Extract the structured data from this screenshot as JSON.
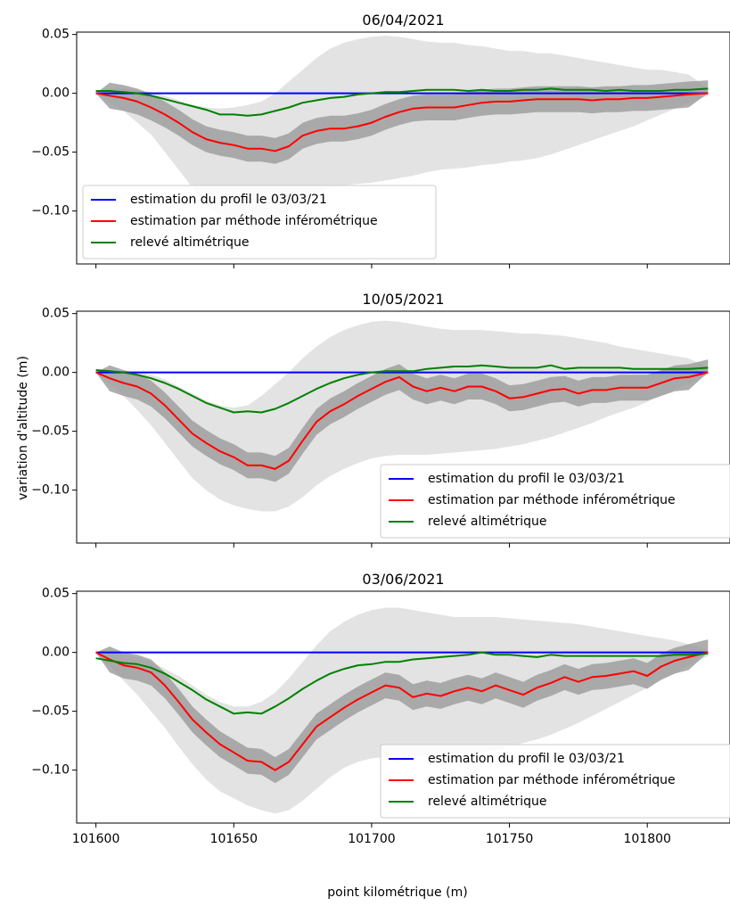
{
  "figure": {
    "xlabel": "point kilométrique (m)",
    "ylabel": "variation d'altitude (m)"
  },
  "chart_data": [
    {
      "type": "line",
      "title": "06/04/2021",
      "xlim": [
        101593,
        101830
      ],
      "ylim": [
        -0.145,
        0.052
      ],
      "xticks": [
        101600,
        101650,
        101700,
        101750,
        101800
      ],
      "yticks": [
        0.05,
        0.0,
        -0.05,
        -0.1
      ],
      "ytick_labels": [
        "0.05",
        "0.00",
        "−0.05",
        "−0.10"
      ],
      "show_xtick_labels": false,
      "legend_position": "lower-left",
      "x": [
        101600,
        101605,
        101610,
        101615,
        101620,
        101625,
        101630,
        101635,
        101640,
        101645,
        101650,
        101655,
        101660,
        101665,
        101670,
        101675,
        101680,
        101685,
        101690,
        101695,
        101700,
        101705,
        101710,
        101715,
        101720,
        101725,
        101730,
        101735,
        101740,
        101745,
        101750,
        101755,
        101760,
        101765,
        101770,
        101775,
        101780,
        101785,
        101790,
        101795,
        101800,
        101805,
        101810,
        101815,
        101822
      ],
      "light_band": {
        "upper": [
          0.002,
          0.004,
          0.004,
          0.003,
          0.001,
          -0.002,
          -0.006,
          -0.01,
          -0.012,
          -0.013,
          -0.012,
          -0.01,
          -0.007,
          0.0,
          0.01,
          0.02,
          0.03,
          0.038,
          0.043,
          0.046,
          0.048,
          0.049,
          0.048,
          0.046,
          0.044,
          0.043,
          0.043,
          0.041,
          0.04,
          0.038,
          0.036,
          0.036,
          0.034,
          0.034,
          0.032,
          0.03,
          0.028,
          0.026,
          0.024,
          0.022,
          0.02,
          0.02,
          0.018,
          0.016,
          0.004
        ],
        "lower": [
          0.0,
          -0.008,
          -0.015,
          -0.025,
          -0.035,
          -0.05,
          -0.065,
          -0.08,
          -0.095,
          -0.103,
          -0.108,
          -0.11,
          -0.11,
          -0.108,
          -0.1,
          -0.092,
          -0.085,
          -0.08,
          -0.078,
          -0.077,
          -0.076,
          -0.074,
          -0.072,
          -0.07,
          -0.067,
          -0.065,
          -0.064,
          -0.063,
          -0.061,
          -0.06,
          -0.058,
          -0.057,
          -0.055,
          -0.052,
          -0.048,
          -0.044,
          -0.04,
          -0.036,
          -0.032,
          -0.028,
          -0.023,
          -0.018,
          -0.013,
          -0.008,
          -0.002
        ]
      },
      "dark_band_halfwidth": 0.011,
      "series": [
        {
          "name": "estimation du profil le 03/03/21",
          "color": "#0000ff",
          "values": [
            0.0,
            0.0,
            0.0,
            0.0,
            0.0,
            0.0,
            0.0,
            0.0,
            0.0,
            0.0,
            0.0,
            0.0,
            0.0,
            0.0,
            0.0,
            0.0,
            0.0,
            0.0,
            0.0,
            0.0,
            0.0,
            0.0,
            0.0,
            0.0,
            0.0,
            0.0,
            0.0,
            0.0,
            0.0,
            0.0,
            0.0,
            0.0,
            0.0,
            0.0,
            0.0,
            0.0,
            0.0,
            0.0,
            0.0,
            0.0,
            0.0,
            0.0,
            0.0,
            0.0,
            0.0
          ]
        },
        {
          "name": "estimation par méthode inférométrique",
          "color": "#ff0000",
          "values": [
            0.0,
            -0.002,
            -0.004,
            -0.007,
            -0.012,
            -0.018,
            -0.025,
            -0.033,
            -0.039,
            -0.042,
            -0.044,
            -0.047,
            -0.047,
            -0.049,
            -0.045,
            -0.036,
            -0.032,
            -0.03,
            -0.03,
            -0.028,
            -0.025,
            -0.02,
            -0.016,
            -0.013,
            -0.012,
            -0.012,
            -0.012,
            -0.01,
            -0.008,
            -0.007,
            -0.007,
            -0.006,
            -0.005,
            -0.005,
            -0.005,
            -0.005,
            -0.006,
            -0.005,
            -0.005,
            -0.004,
            -0.004,
            -0.003,
            -0.002,
            -0.001,
            0.0
          ]
        },
        {
          "name": "relevé altimétrique",
          "color": "#008000",
          "values": [
            0.002,
            0.002,
            0.001,
            0.0,
            -0.002,
            -0.005,
            -0.008,
            -0.011,
            -0.014,
            -0.018,
            -0.018,
            -0.019,
            -0.018,
            -0.015,
            -0.012,
            -0.008,
            -0.006,
            -0.004,
            -0.003,
            -0.001,
            0.0,
            0.001,
            0.001,
            0.002,
            0.003,
            0.003,
            0.003,
            0.002,
            0.003,
            0.002,
            0.002,
            0.003,
            0.003,
            0.004,
            0.003,
            0.003,
            0.003,
            0.002,
            0.003,
            0.002,
            0.002,
            0.002,
            0.003,
            0.003,
            0.004
          ]
        }
      ]
    },
    {
      "type": "line",
      "title": "10/05/2021",
      "xlim": [
        101593,
        101830
      ],
      "ylim": [
        -0.145,
        0.052
      ],
      "xticks": [
        101600,
        101650,
        101700,
        101750,
        101800
      ],
      "yticks": [
        0.05,
        0.0,
        -0.05,
        -0.1
      ],
      "ytick_labels": [
        "0.05",
        "0.00",
        "−0.05",
        "−0.10"
      ],
      "show_xtick_labels": false,
      "legend_position": "lower-right",
      "x": [
        101600,
        101605,
        101610,
        101615,
        101620,
        101625,
        101630,
        101635,
        101640,
        101645,
        101650,
        101655,
        101660,
        101665,
        101670,
        101675,
        101680,
        101685,
        101690,
        101695,
        101700,
        101705,
        101710,
        101715,
        101720,
        101725,
        101730,
        101735,
        101740,
        101745,
        101750,
        101755,
        101760,
        101765,
        101770,
        101775,
        101780,
        101785,
        101790,
        101795,
        101800,
        101805,
        101810,
        101815,
        101822
      ],
      "light_band": {
        "upper": [
          0.002,
          0.002,
          0.001,
          0.0,
          -0.002,
          -0.006,
          -0.012,
          -0.018,
          -0.024,
          -0.028,
          -0.03,
          -0.028,
          -0.02,
          -0.01,
          0.0,
          0.012,
          0.022,
          0.03,
          0.036,
          0.04,
          0.043,
          0.044,
          0.043,
          0.041,
          0.039,
          0.037,
          0.036,
          0.036,
          0.036,
          0.035,
          0.034,
          0.033,
          0.033,
          0.032,
          0.031,
          0.029,
          0.027,
          0.025,
          0.022,
          0.02,
          0.018,
          0.016,
          0.014,
          0.012,
          0.004
        ],
        "lower": [
          0.0,
          -0.01,
          -0.02,
          -0.032,
          -0.045,
          -0.06,
          -0.075,
          -0.09,
          -0.1,
          -0.108,
          -0.113,
          -0.116,
          -0.118,
          -0.118,
          -0.114,
          -0.106,
          -0.096,
          -0.088,
          -0.082,
          -0.077,
          -0.073,
          -0.071,
          -0.07,
          -0.07,
          -0.07,
          -0.069,
          -0.068,
          -0.067,
          -0.066,
          -0.065,
          -0.063,
          -0.061,
          -0.058,
          -0.055,
          -0.051,
          -0.047,
          -0.043,
          -0.038,
          -0.034,
          -0.03,
          -0.025,
          -0.02,
          -0.015,
          -0.01,
          -0.002
        ]
      },
      "dark_band_halfwidth": 0.011,
      "series": [
        {
          "name": "estimation du profil le 03/03/21",
          "color": "#0000ff",
          "values": [
            0.0,
            0.0,
            0.0,
            0.0,
            0.0,
            0.0,
            0.0,
            0.0,
            0.0,
            0.0,
            0.0,
            0.0,
            0.0,
            0.0,
            0.0,
            0.0,
            0.0,
            0.0,
            0.0,
            0.0,
            0.0,
            0.0,
            0.0,
            0.0,
            0.0,
            0.0,
            0.0,
            0.0,
            0.0,
            0.0,
            0.0,
            0.0,
            0.0,
            0.0,
            0.0,
            0.0,
            0.0,
            0.0,
            0.0,
            0.0,
            0.0,
            0.0,
            0.0,
            0.0,
            0.0
          ]
        },
        {
          "name": "estimation par méthode inférométrique",
          "color": "#ff0000",
          "values": [
            0.0,
            -0.005,
            -0.009,
            -0.012,
            -0.018,
            -0.028,
            -0.04,
            -0.052,
            -0.06,
            -0.067,
            -0.072,
            -0.079,
            -0.079,
            -0.082,
            -0.075,
            -0.058,
            -0.042,
            -0.033,
            -0.027,
            -0.02,
            -0.014,
            -0.008,
            -0.004,
            -0.012,
            -0.016,
            -0.013,
            -0.016,
            -0.012,
            -0.012,
            -0.016,
            -0.022,
            -0.021,
            -0.018,
            -0.015,
            -0.014,
            -0.018,
            -0.015,
            -0.015,
            -0.013,
            -0.013,
            -0.013,
            -0.009,
            -0.005,
            -0.004,
            0.0
          ]
        },
        {
          "name": "relevé altimétrique",
          "color": "#008000",
          "values": [
            0.002,
            0.001,
            0.0,
            -0.002,
            -0.005,
            -0.009,
            -0.014,
            -0.02,
            -0.026,
            -0.03,
            -0.034,
            -0.033,
            -0.034,
            -0.031,
            -0.026,
            -0.02,
            -0.014,
            -0.009,
            -0.005,
            -0.002,
            0.0,
            0.001,
            0.001,
            0.001,
            0.003,
            0.004,
            0.005,
            0.005,
            0.006,
            0.005,
            0.004,
            0.004,
            0.004,
            0.006,
            0.003,
            0.004,
            0.004,
            0.004,
            0.004,
            0.003,
            0.003,
            0.003,
            0.003,
            0.003,
            0.004
          ]
        }
      ]
    },
    {
      "type": "line",
      "title": "03/06/2021",
      "xlim": [
        101593,
        101830
      ],
      "ylim": [
        -0.145,
        0.052
      ],
      "xticks": [
        101600,
        101650,
        101700,
        101750,
        101800
      ],
      "xtick_labels": [
        "101600",
        "101650",
        "101700",
        "101750",
        "101800"
      ],
      "yticks": [
        0.05,
        0.0,
        -0.05,
        -0.1
      ],
      "ytick_labels": [
        "0.05",
        "0.00",
        "−0.05",
        "−0.10"
      ],
      "show_xtick_labels": true,
      "legend_position": "lower-right",
      "x": [
        101600,
        101605,
        101610,
        101615,
        101620,
        101625,
        101630,
        101635,
        101640,
        101645,
        101650,
        101655,
        101660,
        101665,
        101670,
        101675,
        101680,
        101685,
        101690,
        101695,
        101700,
        101705,
        101710,
        101715,
        101720,
        101725,
        101730,
        101735,
        101740,
        101745,
        101750,
        101755,
        101760,
        101765,
        101770,
        101775,
        101780,
        101785,
        101790,
        101795,
        101800,
        101805,
        101810,
        101815,
        101822
      ],
      "light_band": {
        "upper": [
          0.0,
          0.0,
          -0.002,
          -0.004,
          -0.008,
          -0.014,
          -0.02,
          -0.028,
          -0.036,
          -0.042,
          -0.046,
          -0.046,
          -0.042,
          -0.034,
          -0.022,
          -0.008,
          0.006,
          0.018,
          0.026,
          0.032,
          0.036,
          0.038,
          0.038,
          0.036,
          0.034,
          0.032,
          0.03,
          0.03,
          0.03,
          0.03,
          0.029,
          0.028,
          0.027,
          0.026,
          0.025,
          0.024,
          0.022,
          0.02,
          0.018,
          0.016,
          0.014,
          0.012,
          0.01,
          0.007,
          0.002
        ],
        "lower": [
          -0.002,
          -0.012,
          -0.024,
          -0.036,
          -0.05,
          -0.064,
          -0.08,
          -0.095,
          -0.108,
          -0.118,
          -0.124,
          -0.13,
          -0.134,
          -0.137,
          -0.134,
          -0.126,
          -0.116,
          -0.106,
          -0.098,
          -0.093,
          -0.09,
          -0.089,
          -0.088,
          -0.088,
          -0.088,
          -0.087,
          -0.087,
          -0.086,
          -0.085,
          -0.083,
          -0.08,
          -0.077,
          -0.074,
          -0.07,
          -0.065,
          -0.06,
          -0.054,
          -0.048,
          -0.042,
          -0.036,
          -0.03,
          -0.024,
          -0.018,
          -0.011,
          -0.003
        ]
      },
      "dark_band_halfwidth": 0.011,
      "series": [
        {
          "name": "estimation du profil le 03/03/21",
          "color": "#0000ff",
          "values": [
            0.0,
            0.0,
            0.0,
            0.0,
            0.0,
            0.0,
            0.0,
            0.0,
            0.0,
            0.0,
            0.0,
            0.0,
            0.0,
            0.0,
            0.0,
            0.0,
            0.0,
            0.0,
            0.0,
            0.0,
            0.0,
            0.0,
            0.0,
            0.0,
            0.0,
            0.0,
            0.0,
            0.0,
            0.0,
            0.0,
            0.0,
            0.0,
            0.0,
            0.0,
            0.0,
            0.0,
            0.0,
            0.0,
            0.0,
            0.0,
            0.0,
            0.0,
            0.0,
            0.0,
            0.0
          ]
        },
        {
          "name": "estimation par méthode inférométrique",
          "color": "#ff0000",
          "values": [
            0.0,
            -0.006,
            -0.011,
            -0.013,
            -0.017,
            -0.028,
            -0.042,
            -0.057,
            -0.068,
            -0.078,
            -0.085,
            -0.092,
            -0.093,
            -0.1,
            -0.093,
            -0.078,
            -0.063,
            -0.055,
            -0.047,
            -0.04,
            -0.034,
            -0.028,
            -0.03,
            -0.038,
            -0.035,
            -0.037,
            -0.033,
            -0.03,
            -0.033,
            -0.028,
            -0.032,
            -0.036,
            -0.03,
            -0.026,
            -0.021,
            -0.025,
            -0.021,
            -0.02,
            -0.018,
            -0.016,
            -0.02,
            -0.012,
            -0.007,
            -0.004,
            0.0
          ]
        },
        {
          "name": "relevé altimétrique",
          "color": "#008000",
          "values": [
            -0.005,
            -0.007,
            -0.009,
            -0.01,
            -0.013,
            -0.018,
            -0.025,
            -0.032,
            -0.04,
            -0.046,
            -0.052,
            -0.051,
            -0.052,
            -0.046,
            -0.039,
            -0.031,
            -0.024,
            -0.018,
            -0.014,
            -0.011,
            -0.01,
            -0.008,
            -0.008,
            -0.006,
            -0.005,
            -0.004,
            -0.003,
            -0.002,
            0.0,
            -0.002,
            -0.002,
            -0.003,
            -0.004,
            -0.002,
            -0.003,
            -0.003,
            -0.003,
            -0.003,
            -0.003,
            -0.003,
            -0.003,
            -0.003,
            -0.002,
            -0.002,
            -0.001
          ]
        }
      ]
    }
  ]
}
